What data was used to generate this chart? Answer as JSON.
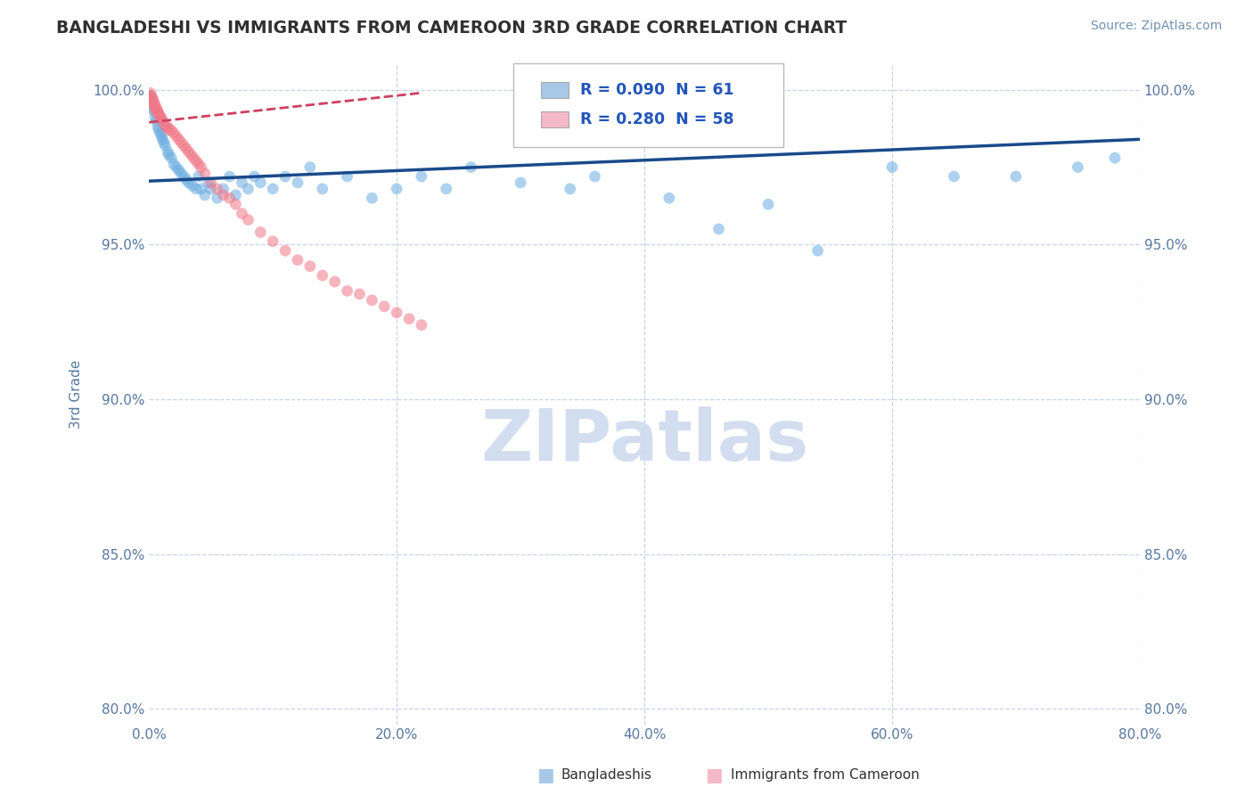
{
  "title": "BANGLADESHI VS IMMIGRANTS FROM CAMEROON 3RD GRADE CORRELATION CHART",
  "source": "Source: ZipAtlas.com",
  "ylabel": "3rd Grade",
  "xlim": [
    0.0,
    0.8
  ],
  "ylim": [
    0.795,
    1.008
  ],
  "xticks": [
    0.0,
    0.2,
    0.4,
    0.6,
    0.8
  ],
  "xticklabels": [
    "0.0%",
    "20.0%",
    "40.0%",
    "60.0%",
    "80.0%"
  ],
  "yticks": [
    0.8,
    0.85,
    0.9,
    0.95,
    1.0
  ],
  "yticklabels": [
    "80.0%",
    "85.0%",
    "90.0%",
    "95.0%",
    "100.0%"
  ],
  "legend_r_n": [
    {
      "R": "0.090",
      "N": "61",
      "color": "#a8c8e8"
    },
    {
      "R": "0.280",
      "N": "58",
      "color": "#f4b8c8"
    }
  ],
  "blue_scatter_x": [
    0.001,
    0.002,
    0.003,
    0.004,
    0.005,
    0.006,
    0.007,
    0.008,
    0.009,
    0.01,
    0.011,
    0.012,
    0.013,
    0.015,
    0.016,
    0.018,
    0.02,
    0.022,
    0.024,
    0.026,
    0.028,
    0.03,
    0.032,
    0.035,
    0.038,
    0.04,
    0.042,
    0.045,
    0.048,
    0.05,
    0.055,
    0.06,
    0.065,
    0.07,
    0.075,
    0.08,
    0.085,
    0.09,
    0.1,
    0.11,
    0.12,
    0.13,
    0.14,
    0.16,
    0.18,
    0.2,
    0.22,
    0.24,
    0.26,
    0.3,
    0.34,
    0.36,
    0.42,
    0.46,
    0.5,
    0.54,
    0.6,
    0.65,
    0.7,
    0.75,
    0.78
  ],
  "blue_scatter_y": [
    0.998,
    0.996,
    0.994,
    0.993,
    0.991,
    0.99,
    0.988,
    0.987,
    0.986,
    0.985,
    0.984,
    0.983,
    0.982,
    0.98,
    0.979,
    0.978,
    0.976,
    0.975,
    0.974,
    0.973,
    0.972,
    0.971,
    0.97,
    0.969,
    0.968,
    0.972,
    0.968,
    0.966,
    0.97,
    0.968,
    0.965,
    0.968,
    0.972,
    0.966,
    0.97,
    0.968,
    0.972,
    0.97,
    0.968,
    0.972,
    0.97,
    0.975,
    0.968,
    0.972,
    0.965,
    0.968,
    0.972,
    0.968,
    0.975,
    0.97,
    0.968,
    0.972,
    0.965,
    0.955,
    0.963,
    0.948,
    0.975,
    0.972,
    0.972,
    0.975,
    0.978
  ],
  "pink_scatter_x": [
    0.001,
    0.002,
    0.003,
    0.004,
    0.005,
    0.006,
    0.007,
    0.008,
    0.009,
    0.01,
    0.011,
    0.012,
    0.014,
    0.015,
    0.016,
    0.018,
    0.02,
    0.022,
    0.024,
    0.026,
    0.028,
    0.03,
    0.032,
    0.034,
    0.036,
    0.038,
    0.04,
    0.042,
    0.045,
    0.05,
    0.055,
    0.06,
    0.065,
    0.07,
    0.075,
    0.08,
    0.09,
    0.1,
    0.11,
    0.12,
    0.13,
    0.14,
    0.15,
    0.16,
    0.17,
    0.18,
    0.19,
    0.2,
    0.21,
    0.22,
    0.001,
    0.002,
    0.003,
    0.004,
    0.005,
    0.006,
    0.007,
    0.008
  ],
  "pink_scatter_y": [
    0.998,
    0.996,
    0.997,
    0.995,
    0.994,
    0.993,
    0.993,
    0.992,
    0.991,
    0.991,
    0.99,
    0.989,
    0.988,
    0.988,
    0.987,
    0.987,
    0.986,
    0.985,
    0.984,
    0.983,
    0.982,
    0.981,
    0.98,
    0.979,
    0.978,
    0.977,
    0.976,
    0.975,
    0.973,
    0.97,
    0.968,
    0.966,
    0.965,
    0.963,
    0.96,
    0.958,
    0.954,
    0.951,
    0.948,
    0.945,
    0.943,
    0.94,
    0.938,
    0.935,
    0.934,
    0.932,
    0.93,
    0.928,
    0.926,
    0.924,
    0.999,
    0.998,
    0.997,
    0.996,
    0.995,
    0.994,
    0.993,
    0.992
  ],
  "blue_line_x": [
    0.0,
    0.8
  ],
  "blue_line_y": [
    0.9705,
    0.984
  ],
  "pink_line_x": [
    0.0,
    0.22
  ],
  "pink_line_y": [
    0.9895,
    0.999
  ],
  "scatter_alpha": 0.55,
  "scatter_size": 85,
  "blue_color": "#6aace0",
  "pink_color": "#f07888",
  "blue_line_color": "#1a4a8a",
  "pink_line_color": "#d04060",
  "watermark": "ZIPatlas",
  "watermark_color": "#ccd8ee",
  "background_color": "#ffffff",
  "grid_color": "#c8d4e4",
  "title_color": "#303030",
  "axis_label_color": "#5878a0",
  "tick_color": "#5878a0",
  "source_color": "#7090b0"
}
